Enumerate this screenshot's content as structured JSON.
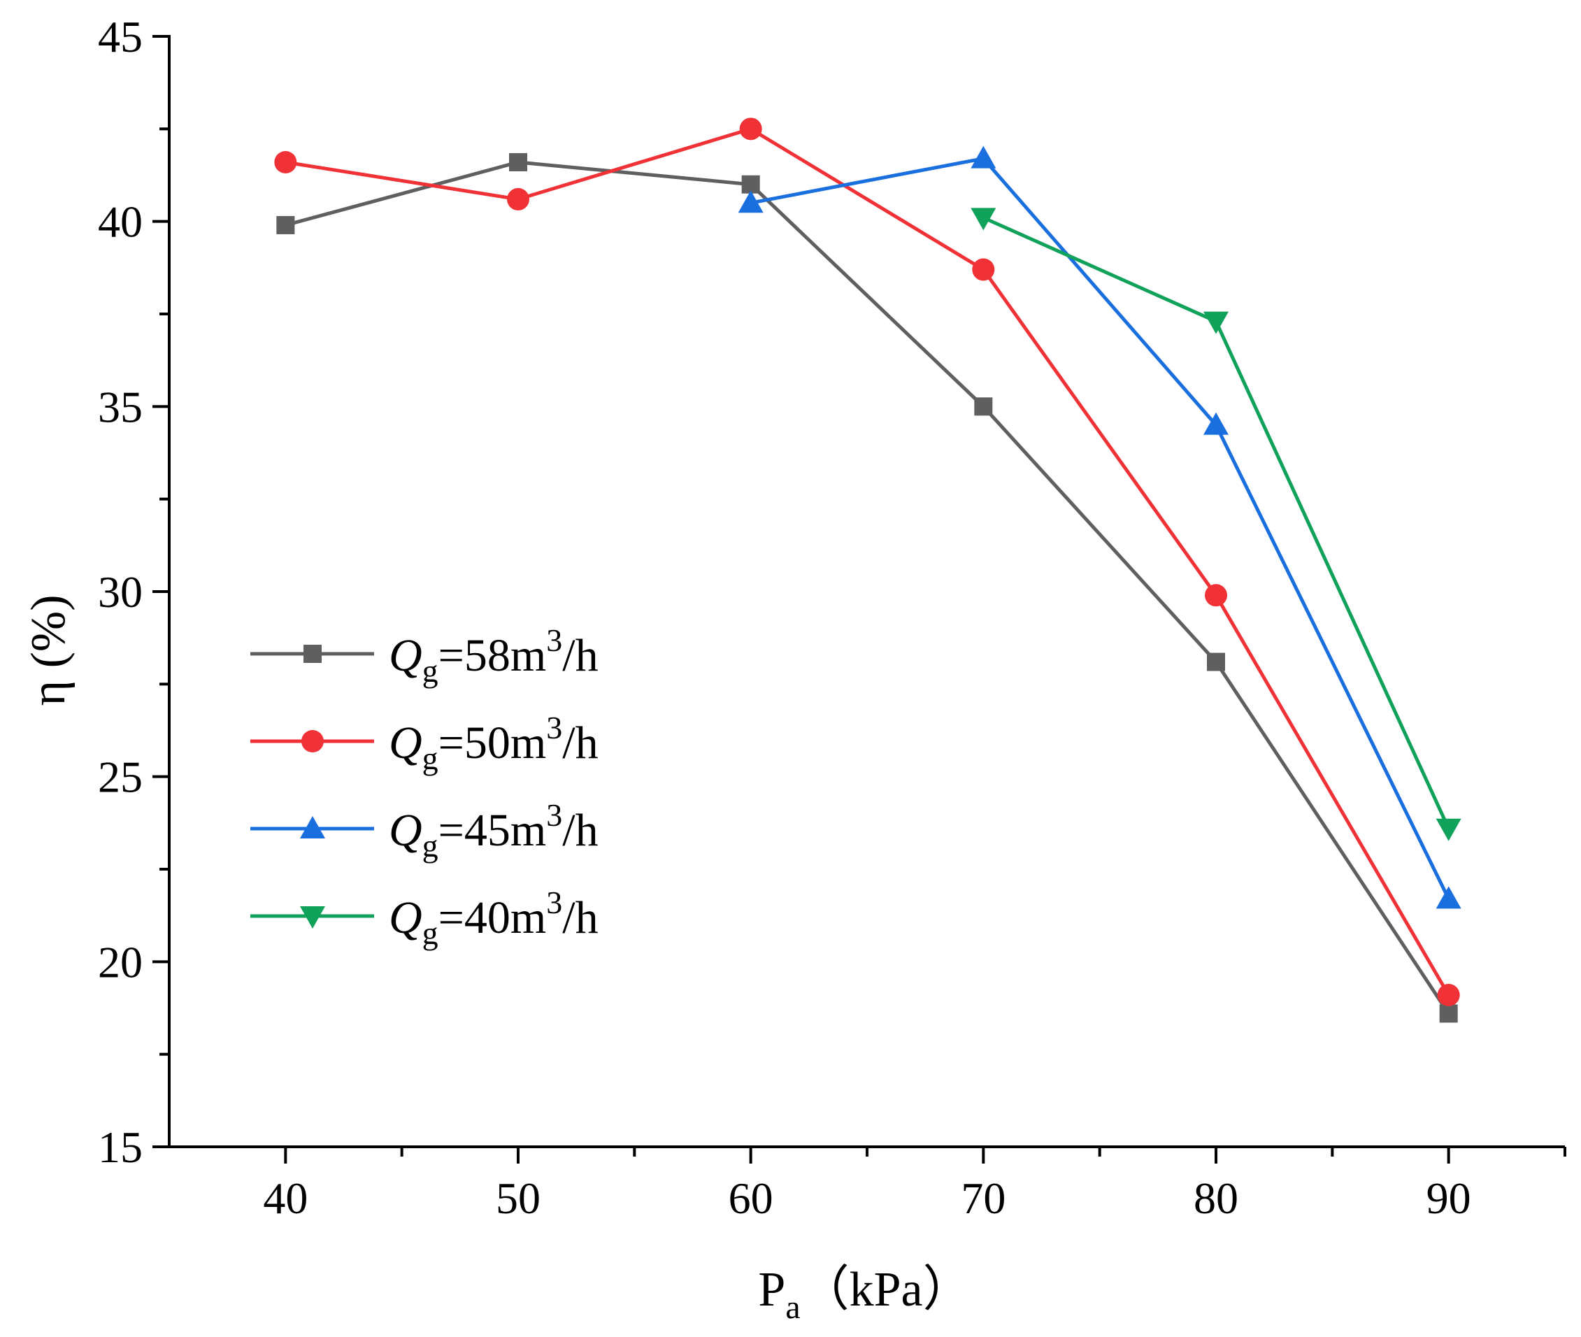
{
  "chart_data": {
    "type": "line",
    "title": "",
    "xlabel": {
      "main": "P",
      "sub": "a",
      "unit": "（kPa）"
    },
    "ylabel": "η (%)",
    "xlim": [
      35,
      95
    ],
    "ylim": [
      15,
      45
    ],
    "x_ticks": [
      40,
      50,
      60,
      70,
      80,
      90
    ],
    "y_ticks": [
      15,
      20,
      25,
      30,
      35,
      40,
      45
    ],
    "legend_position": "center-left",
    "series": [
      {
        "name": "Q_g=58m³/h",
        "label": {
          "italic": "Q",
          "sub": "g",
          "pre": "=58m",
          "sup": "3",
          "post": "/h"
        },
        "color": "#5f5f5f",
        "marker": "square",
        "x": [
          40,
          50,
          60,
          70,
          80,
          90
        ],
        "y": [
          39.9,
          41.6,
          41.0,
          35.0,
          28.1,
          18.6
        ]
      },
      {
        "name": "Q_g=50m³/h",
        "label": {
          "italic": "Q",
          "sub": "g",
          "pre": "=50m",
          "sup": "3",
          "post": "/h"
        },
        "color": "#f03237",
        "marker": "circle",
        "x": [
          40,
          50,
          60,
          70,
          80,
          90
        ],
        "y": [
          41.6,
          40.6,
          42.5,
          38.7,
          29.9,
          19.1
        ]
      },
      {
        "name": "Q_g=45m³/h",
        "label": {
          "italic": "Q",
          "sub": "g",
          "pre": "=45m",
          "sup": "3",
          "post": "/h"
        },
        "color": "#1a6fdf",
        "marker": "triangle-up",
        "x": [
          60,
          70,
          80,
          90
        ],
        "y": [
          40.5,
          41.7,
          34.5,
          21.7
        ]
      },
      {
        "name": "Q_g=40m³/h",
        "label": {
          "italic": "Q",
          "sub": "g",
          "pre": "=40m",
          "sup": "3",
          "post": "/h"
        },
        "color": "#10a15a",
        "marker": "triangle-down",
        "x": [
          70,
          80,
          90
        ],
        "y": [
          40.1,
          37.3,
          23.6
        ]
      }
    ]
  }
}
